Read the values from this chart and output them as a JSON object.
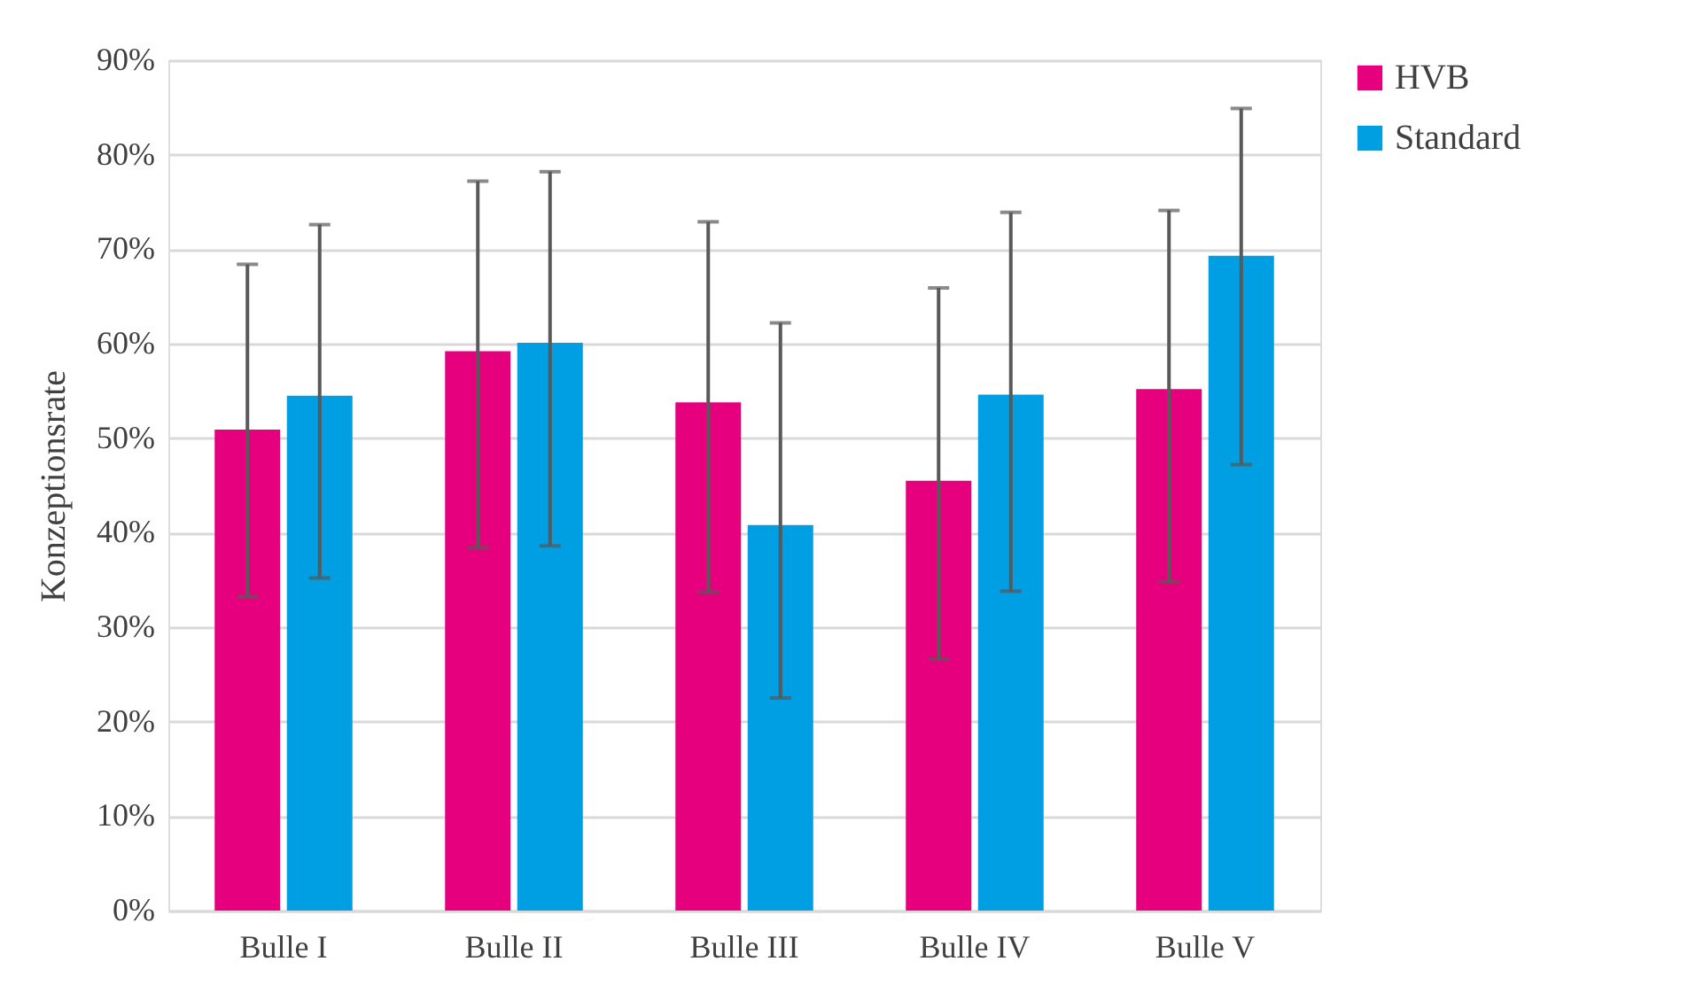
{
  "chart_data": {
    "type": "bar",
    "ylabel": "Konzeptionsrate",
    "categories": [
      "Bulle I",
      "Bulle II",
      "Bulle III",
      "Bulle IV",
      "Bulle V"
    ],
    "series": [
      {
        "name": "HVB",
        "color": "#e6007e",
        "values": [
          50.9,
          59.2,
          53.8,
          45.5,
          55.2
        ],
        "errors": [
          [
            33.2,
            68.4
          ],
          [
            38.4,
            77.2
          ],
          [
            33.7,
            72.9
          ],
          [
            26.6,
            65.9
          ],
          [
            34.8,
            74.1
          ]
        ]
      },
      {
        "name": "Standard",
        "color": "#009fe3",
        "values": [
          54.5,
          60.1,
          40.8,
          54.6,
          69.3
        ],
        "errors": [
          [
            35.2,
            72.6
          ],
          [
            38.6,
            78.2
          ],
          [
            22.5,
            62.2
          ],
          [
            33.8,
            73.9
          ],
          [
            47.2,
            84.9
          ]
        ]
      }
    ],
    "ylim": [
      0,
      90
    ],
    "yticks": [
      {
        "value": 0,
        "label": "0%"
      },
      {
        "value": 10,
        "label": "10%"
      },
      {
        "value": 20,
        "label": "20%"
      },
      {
        "value": 30,
        "label": "30%"
      },
      {
        "value": 40,
        "label": "40%"
      },
      {
        "value": 50,
        "label": "50%"
      },
      {
        "value": 60,
        "label": "60%"
      },
      {
        "value": 70,
        "label": "70%"
      },
      {
        "value": 80,
        "label": "80%"
      },
      {
        "value": 90,
        "label": "90%"
      }
    ],
    "grid": "y",
    "legend": "right"
  }
}
